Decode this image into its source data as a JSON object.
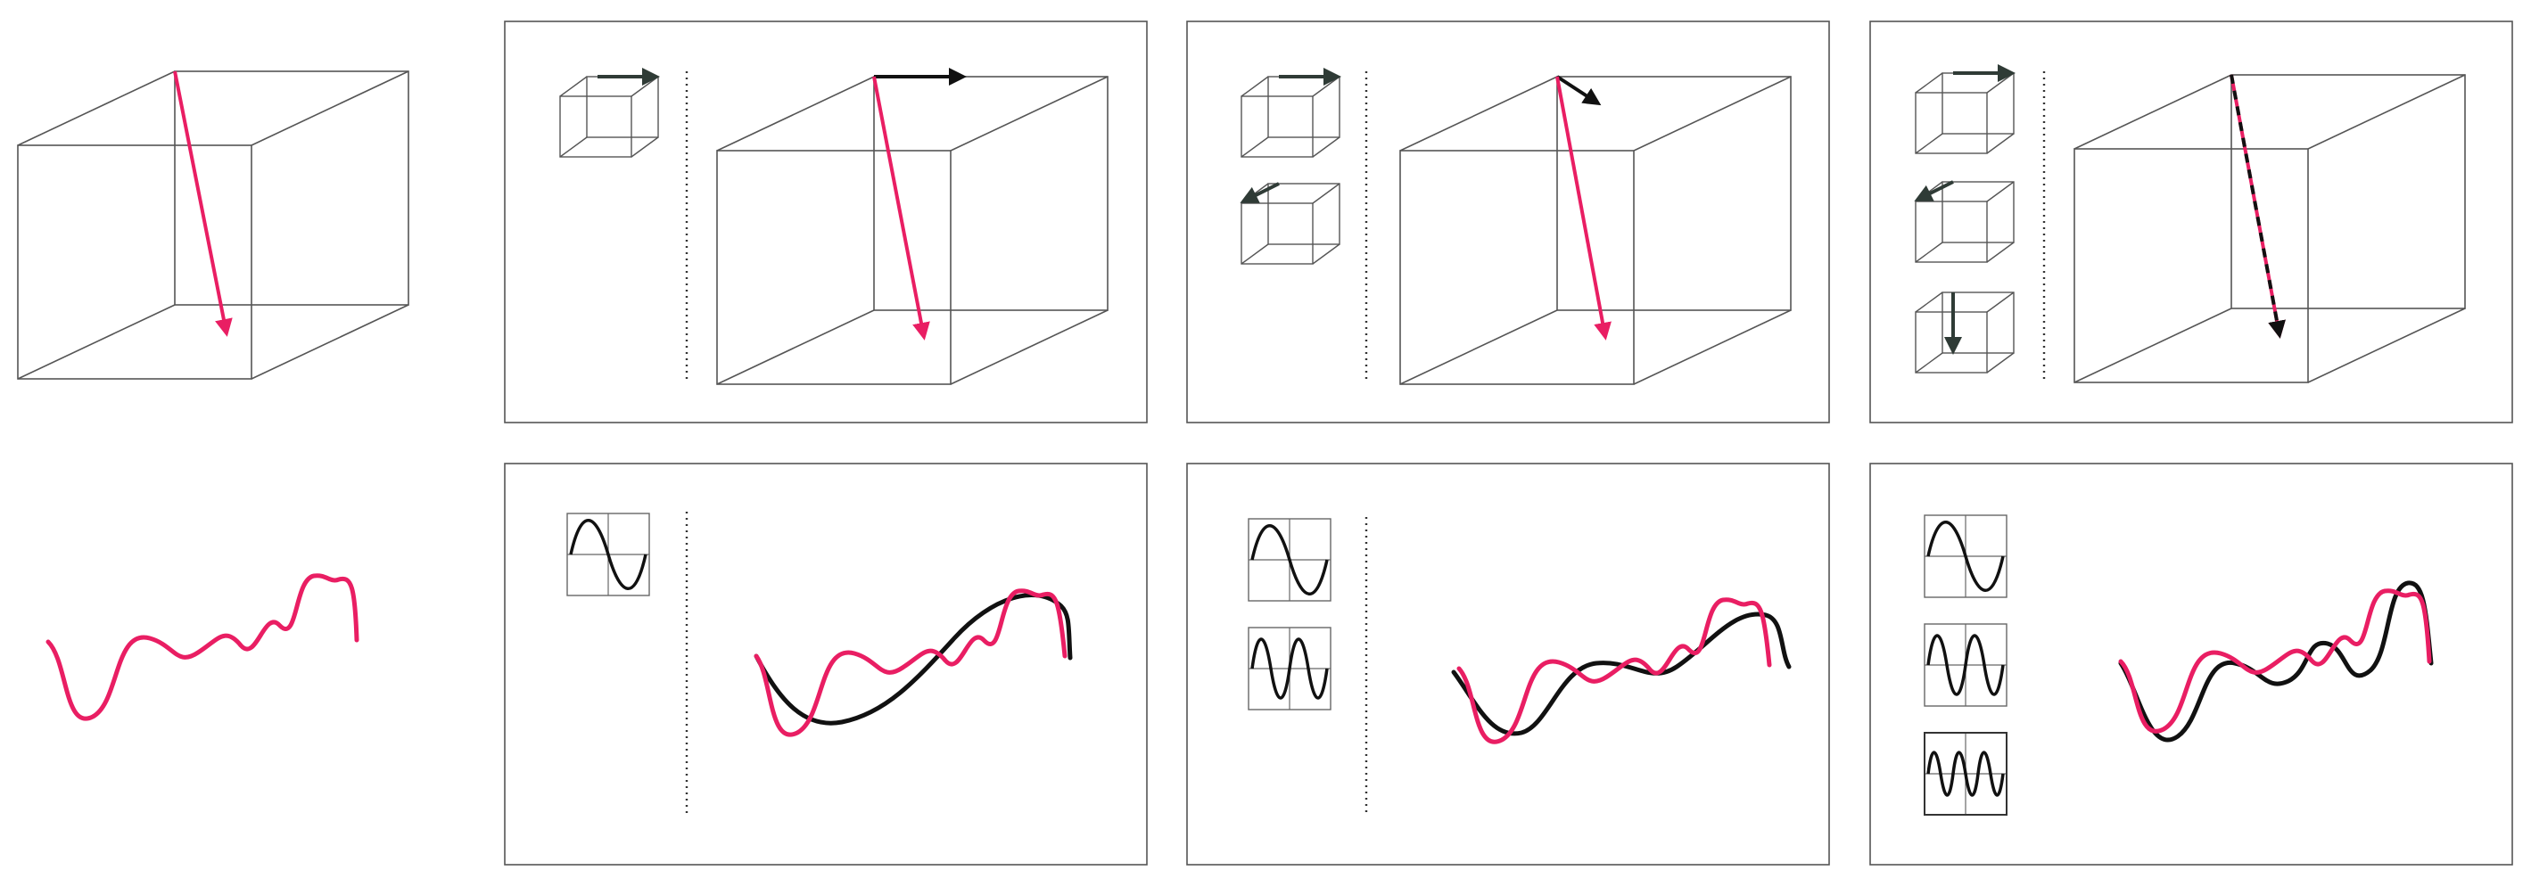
{
  "figure": {
    "colors": {
      "target": "#e91e63",
      "approximation": "#111111",
      "basis_arrow": "#2f3b36",
      "frame": "#555555",
      "divider": "#333333"
    },
    "rows": [
      {
        "name": "vector-row",
        "target": "3d-vector",
        "steps": [
          {
            "basis": [
              "x-axis"
            ],
            "terms": 1
          },
          {
            "basis": [
              "x-axis",
              "y-axis"
            ],
            "terms": 2
          },
          {
            "basis": [
              "x-axis",
              "y-axis",
              "z-axis"
            ],
            "terms": 3
          }
        ]
      },
      {
        "name": "function-row",
        "target": "wavy-function",
        "steps": [
          {
            "basis": [
              "sine-1"
            ],
            "terms": 1
          },
          {
            "basis": [
              "sine-1",
              "sine-2"
            ],
            "terms": 2
          },
          {
            "basis": [
              "sine-1",
              "sine-2",
              "sine-3"
            ],
            "terms": 3
          }
        ]
      }
    ]
  }
}
